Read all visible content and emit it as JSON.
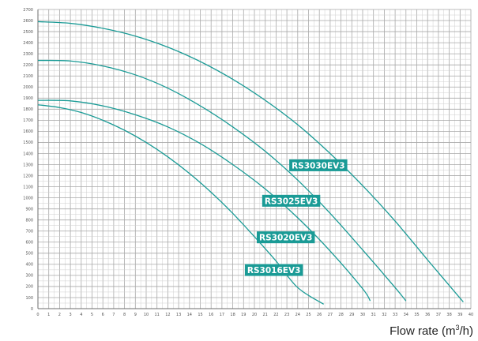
{
  "chart_data": {
    "type": "line",
    "title": "",
    "xlabel": "Flow rate (m",
    "xlabel_sup": "3",
    "xlabel_end": "/h)",
    "ylabel": "",
    "xlim": [
      0,
      40
    ],
    "ylim": [
      0,
      2700
    ],
    "x_ticks": [
      0,
      1,
      2,
      3,
      4,
      5,
      6,
      7,
      8,
      9,
      10,
      11,
      12,
      13,
      14,
      15,
      16,
      17,
      18,
      19,
      20,
      21,
      22,
      23,
      24,
      25,
      26,
      27,
      28,
      29,
      30,
      31,
      32,
      33,
      34,
      35,
      36,
      37,
      38,
      39,
      40
    ],
    "y_ticks": [
      0,
      100,
      200,
      300,
      400,
      500,
      600,
      700,
      800,
      900,
      1000,
      1100,
      1200,
      1300,
      1400,
      1500,
      1600,
      1700,
      1800,
      1900,
      2000,
      2100,
      2200,
      2300,
      2400,
      2500,
      2600,
      2700
    ],
    "grid": true,
    "series_color": "#1a9b96",
    "series": [
      {
        "name": "RS3030EV3",
        "x": [
          0,
          3,
          6,
          9,
          12,
          15,
          18,
          21,
          24,
          27,
          30,
          33,
          36,
          39.3
        ],
        "values": [
          2590,
          2575,
          2530,
          2460,
          2360,
          2230,
          2070,
          1880,
          1660,
          1400,
          1110,
          790,
          440,
          60
        ]
      },
      {
        "name": "RS3025EV3",
        "x": [
          0,
          3,
          6,
          9,
          12,
          15,
          18,
          21,
          24,
          27,
          30,
          33,
          34
        ],
        "values": [
          2240,
          2235,
          2190,
          2110,
          1990,
          1830,
          1640,
          1420,
          1160,
          860,
          530,
          190,
          70
        ]
      },
      {
        "name": "RS3020EV3",
        "x": [
          0,
          3,
          6,
          9,
          12,
          15,
          18,
          21,
          24,
          27,
          30,
          30.7
        ],
        "values": [
          1880,
          1875,
          1830,
          1750,
          1640,
          1490,
          1300,
          1080,
          820,
          520,
          180,
          70
        ]
      },
      {
        "name": "RS3016EV3",
        "x": [
          0,
          2,
          4,
          6,
          8,
          10,
          12,
          14,
          16,
          18,
          20,
          22,
          24,
          26.4
        ],
        "values": [
          1840,
          1815,
          1770,
          1700,
          1610,
          1500,
          1370,
          1220,
          1050,
          860,
          650,
          430,
          190,
          40
        ]
      }
    ]
  }
}
